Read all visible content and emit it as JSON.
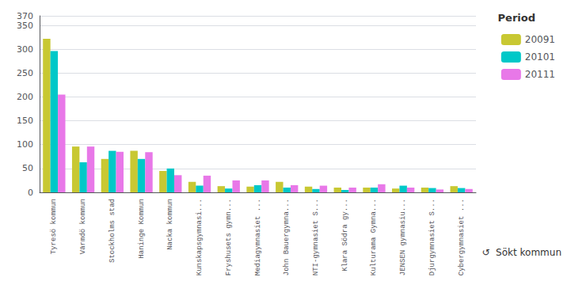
{
  "chart_data": {
    "type": "bar",
    "categories": [
      "Tyresö kommun",
      "Värmdö kommun",
      "Stockholms stad",
      "Haninge Kommun",
      "Nacka kommun",
      "Kunskapsgymnasi...",
      "Fryshusets gymn...",
      "Mediagymnasiet ...",
      "John Bauergymna...",
      "NTI-gymnasiet S...",
      "Klara Södra gy...",
      "Kulturama Gymna...",
      "JENSEN gymnasiu...",
      "Djurgymnasiet S...",
      "Cybergymnasiet ..."
    ],
    "series": [
      {
        "name": "20091",
        "color": "#c8c832",
        "values": [
          322,
          96,
          70,
          87,
          45,
          22,
          13,
          12,
          22,
          12,
          10,
          10,
          8,
          10,
          13
        ]
      },
      {
        "name": "20101",
        "color": "#00c8c8",
        "values": [
          296,
          63,
          87,
          70,
          50,
          14,
          8,
          15,
          10,
          7,
          5,
          10,
          14,
          9,
          9
        ]
      },
      {
        "name": "20111",
        "color": "#e878e8",
        "values": [
          205,
          96,
          85,
          84,
          36,
          35,
          25,
          25,
          15,
          14,
          10,
          17,
          10,
          6,
          7
        ]
      }
    ],
    "legend_title": "Period",
    "legend": "upper right",
    "annotations": [
      "↺",
      "Sökt kommun"
    ],
    "ylim": [
      0,
      370
    ],
    "yticks": [
      0,
      50,
      100,
      150,
      200,
      250,
      300,
      350
    ],
    "grid": true
  }
}
